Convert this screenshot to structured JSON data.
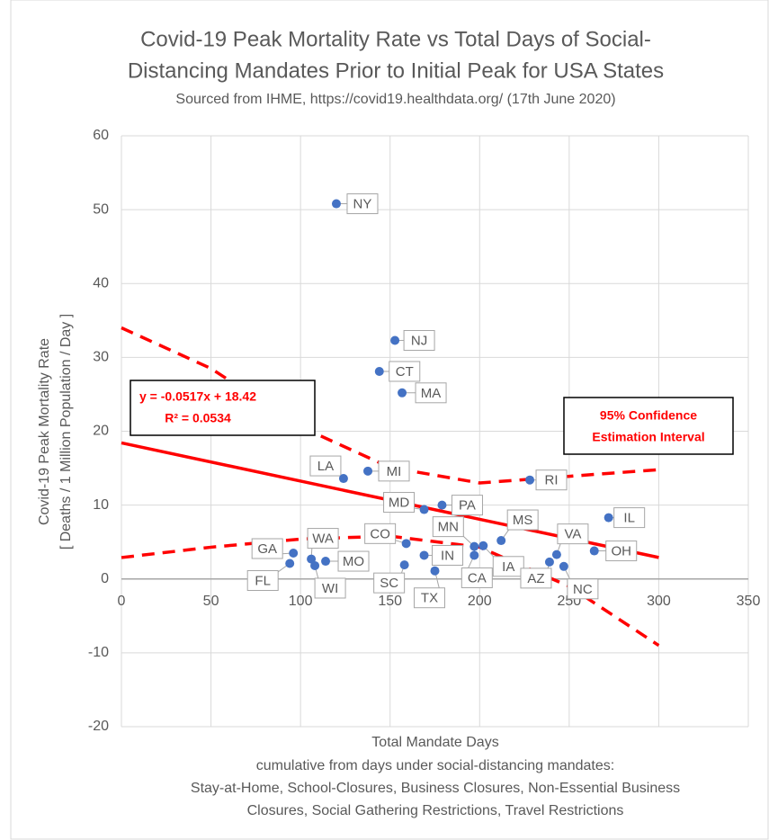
{
  "chart_data": {
    "type": "scatter",
    "title": [
      "Covid-19 Peak Mortality Rate vs Total Days of Social-",
      "Distancing Mandates Prior to Initial Peak for USA States"
    ],
    "subtitle": "Sourced from IHME, https://covid19.healthdata.org/ (17th June 2020)",
    "x_label": [
      "Total Mandate Days",
      "cumulative from days under social-distancing mandates:",
      "Stay-at-Home, School-Closures, Business Closures, Non-Essential Business",
      "Closures, Social Gathering Restrictions, Travel Restrictions"
    ],
    "y_label": [
      "Covid-19 Peak Mortality Rate",
      "[ Deaths / 1 Million Population / Day ]"
    ],
    "xlim": [
      0,
      350
    ],
    "xticks": [
      0,
      50,
      100,
      150,
      200,
      250,
      300,
      350
    ],
    "ylim": [
      -20,
      60
    ],
    "yticks": [
      -20,
      -10,
      0,
      10,
      20,
      30,
      40,
      50,
      60
    ],
    "grid": true,
    "series": [
      {
        "color": "#4472c4",
        "labels": [
          "NY",
          "NJ",
          "CT",
          "MA",
          "LA",
          "MI",
          "RI",
          "MD",
          "PA",
          "IL",
          "MS",
          "CO",
          "MN",
          "IA",
          "CA",
          "VA",
          "OH",
          "AZ",
          "NC",
          "IN",
          "TX",
          "SC",
          "GA",
          "FL",
          "WA",
          "WI",
          "MO"
        ],
        "x": [
          120,
          152.7,
          144,
          156.7,
          124,
          137.6,
          228,
          169,
          179,
          272,
          212,
          159,
          197,
          202,
          197,
          243,
          264,
          239,
          247,
          169,
          175,
          158,
          96,
          94,
          106,
          108,
          114
        ],
        "values": [
          50.8,
          32.3,
          28.1,
          25.2,
          13.6,
          14.6,
          13.4,
          9.4,
          10,
          8.3,
          5.2,
          4.8,
          4.4,
          4.5,
          3.2,
          3.3,
          3.8,
          2.3,
          1.7,
          3.2,
          1.1,
          1.9,
          3.5,
          2.1,
          2.7,
          1.8,
          2.4
        ]
      }
    ],
    "trendline": {
      "color": "#ff0000",
      "equation": "y = -0.0517x + 18.42",
      "r2": "R² = 0.0534",
      "slope": -0.0517,
      "intercept": 18.42,
      "x_range": [
        0,
        300
      ]
    },
    "confidence_interval": {
      "color": "#ff0000",
      "label": [
        "95% Confidence",
        "Estimation Interval"
      ],
      "x": [
        0,
        50,
        100,
        150,
        200,
        250,
        300
      ],
      "upper": [
        34.0,
        28.5,
        20.6,
        15.1,
        13.0,
        13.9,
        14.8
      ],
      "lower": [
        2.9,
        4.3,
        5.4,
        5.8,
        4.3,
        -1.0,
        -9.0
      ]
    }
  }
}
